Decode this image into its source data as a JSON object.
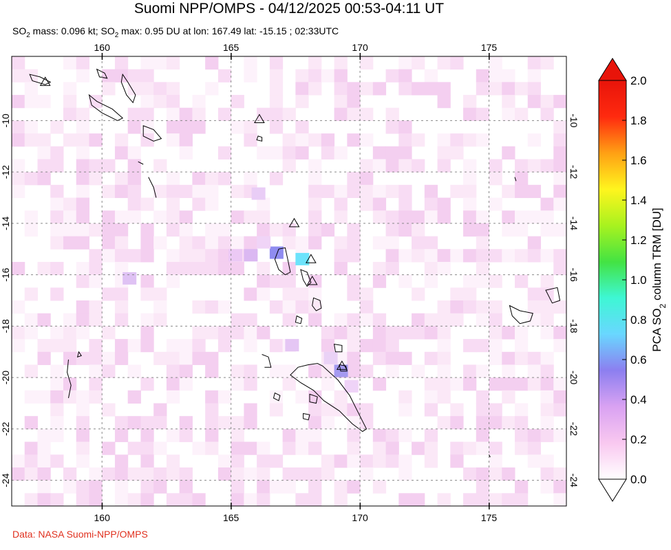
{
  "header": {
    "title": "Suomi NPP/OMPS - 04/12/2025 00:53-04:11 UT",
    "so2_prefix": "SO",
    "so2_mass_text": " mass: 0.096 kt; SO",
    "so2_max_text": " max: 0.95 DU at lon: 167.49 lat: -15.15 ; 02:33UTC"
  },
  "map": {
    "lon_range": [
      156.5,
      178.0
    ],
    "lat_range": [
      -25.0,
      -7.5
    ],
    "lon_ticks": [
      "160",
      "165",
      "170",
      "175"
    ],
    "lat_ticks": [
      "-10",
      "-12",
      "-14",
      "-16",
      "-18",
      "-20",
      "-22",
      "-24"
    ],
    "max_marker": {
      "lon": 167.49,
      "lat": -15.15,
      "value_du": 0.95
    },
    "volcano_icon": "triangle-volcano-icon"
  },
  "colorbar": {
    "title_prefix": "PCA SO",
    "title_suffix": " column TRM [DU]",
    "tick_labels": [
      "2.0",
      "1.8",
      "1.6",
      "1.4",
      "1.2",
      "1.0",
      "0.8",
      "0.6",
      "0.4",
      "0.2",
      "0.0"
    ],
    "range": [
      0.0,
      2.0
    ],
    "colors": [
      "#ffffff",
      "#f9c8f0",
      "#d9a2f2",
      "#8c7ff0",
      "#69d7ff",
      "#3ef7d4",
      "#43e343",
      "#a8f21f",
      "#fff51e",
      "#ffa014",
      "#ff2a0f",
      "#e8140a"
    ]
  },
  "footer": {
    "credit": "Data: NASA Suomi-NPP/OMPS"
  }
}
